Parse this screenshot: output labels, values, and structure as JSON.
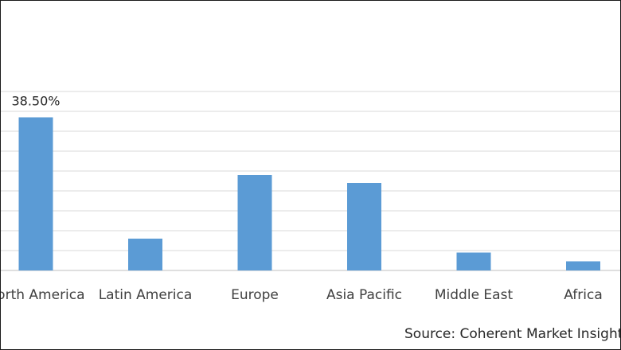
{
  "chart_data": {
    "type": "bar",
    "categories": [
      "North America",
      "Latin America",
      "Europe",
      "Asia Pacific",
      "Middle East",
      "Africa"
    ],
    "values": [
      38.5,
      8.0,
      24.0,
      22.0,
      4.5,
      2.3
    ],
    "data_labels": [
      "38.50%",
      null,
      null,
      null,
      null,
      null
    ],
    "ylim": [
      0,
      45
    ],
    "grid": true,
    "bar_color": "#5b9bd5",
    "source": "Source: Coherent Market Insights"
  }
}
